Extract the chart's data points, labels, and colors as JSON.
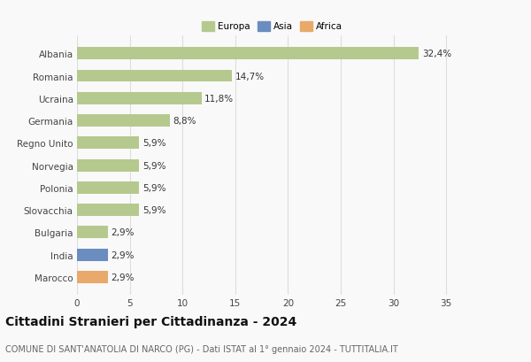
{
  "categories": [
    "Albania",
    "Romania",
    "Ucraina",
    "Germania",
    "Regno Unito",
    "Norvegia",
    "Polonia",
    "Slovacchia",
    "Bulgaria",
    "India",
    "Marocco"
  ],
  "values": [
    32.4,
    14.7,
    11.8,
    8.8,
    5.9,
    5.9,
    5.9,
    5.9,
    2.9,
    2.9,
    2.9
  ],
  "labels": [
    "32,4%",
    "14,7%",
    "11,8%",
    "8,8%",
    "5,9%",
    "5,9%",
    "5,9%",
    "5,9%",
    "2,9%",
    "2,9%",
    "2,9%"
  ],
  "bar_colors": [
    "#b5c98e",
    "#b5c98e",
    "#b5c98e",
    "#b5c98e",
    "#b5c98e",
    "#b5c98e",
    "#b5c98e",
    "#b5c98e",
    "#b5c98e",
    "#6b8cbf",
    "#e8a96a"
  ],
  "legend_labels": [
    "Europa",
    "Asia",
    "Africa"
  ],
  "legend_colors": [
    "#b5c98e",
    "#6b8cbf",
    "#e8a96a"
  ],
  "xlim": [
    0,
    37
  ],
  "xticks": [
    0,
    5,
    10,
    15,
    20,
    25,
    30,
    35
  ],
  "title": "Cittadini Stranieri per Cittadinanza - 2024",
  "subtitle": "COMUNE DI SANT'ANATOLIA DI NARCO (PG) - Dati ISTAT al 1° gennaio 2024 - TUTTITALIA.IT",
  "bg_color": "#f9f9f9",
  "grid_color": "#dddddd",
  "label_fontsize": 7.5,
  "tick_fontsize": 7.5,
  "title_fontsize": 10,
  "subtitle_fontsize": 7
}
